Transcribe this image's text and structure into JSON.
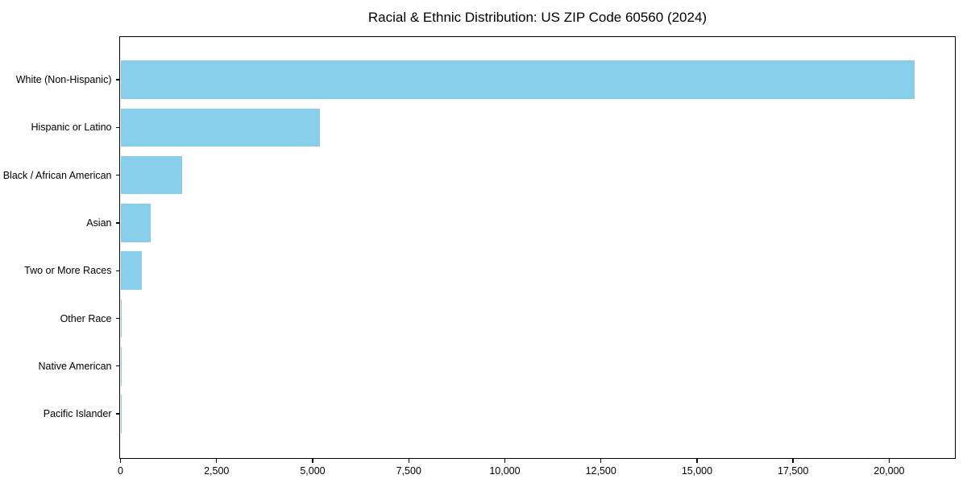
{
  "chart_data": {
    "type": "bar",
    "orientation": "horizontal",
    "title": "Racial & Ethnic Distribution: US ZIP Code 60560 (2024)",
    "xlabel": "",
    "ylabel": "",
    "categories": [
      "White (Non-Hispanic)",
      "Hispanic or Latino",
      "Black / African American",
      "Asian",
      "Two or More Races",
      "Other Race",
      "Native American",
      "Pacific Islander"
    ],
    "values": [
      20670,
      5180,
      1600,
      790,
      560,
      30,
      25,
      5
    ],
    "xlim": [
      0,
      21700
    ],
    "xticks": {
      "values": [
        0,
        2500,
        5000,
        7500,
        10000,
        12500,
        15000,
        17500,
        20000
      ],
      "labels": [
        "0",
        "2,500",
        "5,000",
        "7,500",
        "10,000",
        "12,500",
        "15,000",
        "17,500",
        "20,000"
      ]
    },
    "grid": false,
    "legend": null,
    "bar_color": "#87CEEB"
  },
  "colors": {
    "bar": "#87CEEB",
    "axis": "#000000",
    "text": "#000000",
    "background": "#ffffff"
  }
}
